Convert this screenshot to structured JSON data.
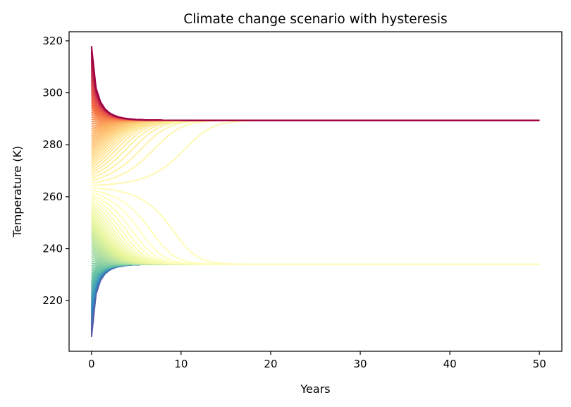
{
  "chart_data": {
    "type": "line",
    "title": "Climate change scenario with hysteresis",
    "xlabel": "Years",
    "ylabel": "Temperature (K)",
    "xlim": [
      -2.5,
      52.5
    ],
    "ylim": [
      200.5,
      323.5
    ],
    "xticks": [
      0,
      10,
      20,
      30,
      40,
      50
    ],
    "yticks": [
      220,
      240,
      260,
      280,
      300,
      320
    ],
    "grid": false,
    "legend": "none",
    "colormap": "Spectral",
    "series_summary": {
      "count": 120,
      "initial_temperature_range": [
        206,
        318
      ],
      "time_range": [
        0,
        50
      ],
      "upper_stable_equilibrium": 289.4,
      "lower_stable_equilibrium": 234.0,
      "unstable_threshold": 264
    },
    "representative_series": [
      {
        "T0": 318,
        "x": [
          0,
          2,
          4,
          6,
          8,
          10,
          15,
          20,
          30,
          40,
          50
        ],
        "y": [
          318,
          304,
          296.5,
          292.5,
          290.8,
          290.1,
          289.6,
          289.4,
          289.4,
          289.4,
          289.4
        ]
      },
      {
        "T0": 290,
        "x": [
          0,
          10,
          20,
          30,
          40,
          50
        ],
        "y": [
          290,
          289.5,
          289.4,
          289.4,
          289.4,
          289.4
        ]
      },
      {
        "T0": 270,
        "x": [
          0,
          10,
          20,
          30,
          40,
          50
        ],
        "y": [
          270,
          276,
          285.5,
          289.2,
          289.4,
          289.4
        ]
      },
      {
        "T0": 264,
        "x": [
          0,
          10,
          20,
          30,
          40,
          45,
          50
        ],
        "y": [
          264,
          264,
          264.5,
          266,
          270,
          276,
          285.5
        ]
      },
      {
        "T0": 260,
        "x": [
          0,
          10,
          20,
          30,
          40,
          50
        ],
        "y": [
          260,
          255,
          244,
          236,
          234.5,
          234.1
        ]
      },
      {
        "T0": 234,
        "x": [
          0,
          10,
          20,
          30,
          40,
          50
        ],
        "y": [
          234,
          234,
          234,
          234,
          234,
          234
        ]
      },
      {
        "T0": 206,
        "x": [
          0,
          2,
          4,
          6,
          8,
          10,
          15,
          20,
          30,
          40,
          50
        ],
        "y": [
          206,
          215,
          220.5,
          224.5,
          227.5,
          229.5,
          232,
          233.1,
          233.8,
          234,
          234
        ]
      }
    ],
    "colors": {
      "hot_end": "#9e0142",
      "mid": "#ffffbf",
      "cold_end": "#5e4fa2"
    }
  }
}
